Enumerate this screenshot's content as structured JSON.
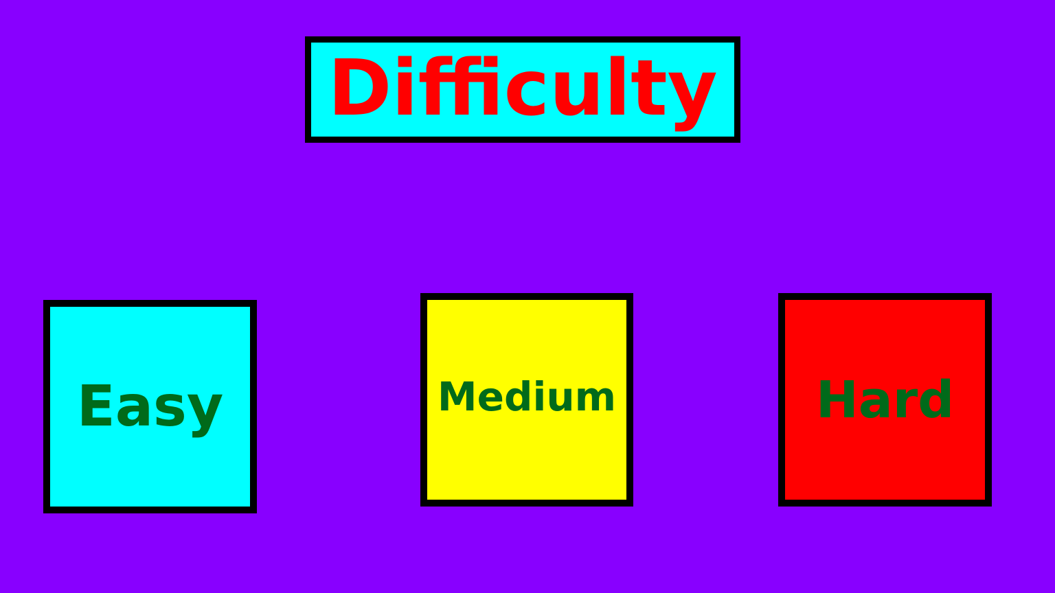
{
  "screen": {
    "title": "Difficulty",
    "background_color": "#8800ff"
  },
  "title_box": {
    "background_color": "#00ffff",
    "text_color": "#ff0000",
    "border_color": "#000000"
  },
  "options": [
    {
      "label": "Easy",
      "background_color": "#00ffff",
      "text_color": "#006a1a"
    },
    {
      "label": "Medium",
      "background_color": "#ffff00",
      "text_color": "#006a1a"
    },
    {
      "label": "Hard",
      "background_color": "#ff0000",
      "text_color": "#006a1a"
    }
  ]
}
